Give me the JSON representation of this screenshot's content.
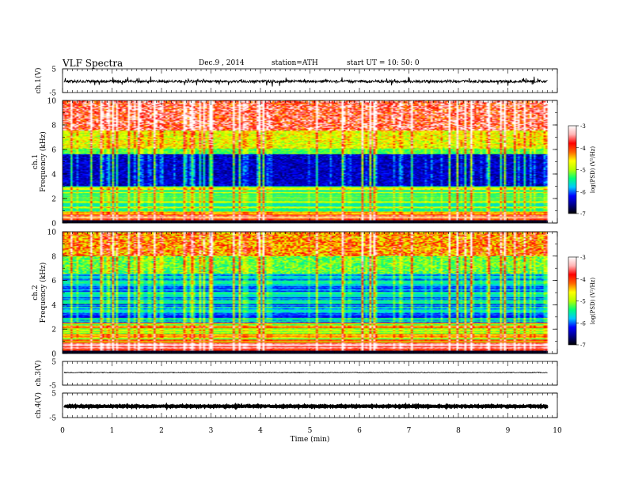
{
  "header": {
    "title": "VLF  Spectra",
    "date": "Dec.9  , 2014",
    "station": "station=ATH",
    "start": "start  UT  =    10: 50: 0"
  },
  "chart_data": [
    {
      "type": "line",
      "panel": "ch1-waveform",
      "ylabel": "ch.1(V)",
      "ylim": [
        -5,
        5
      ],
      "yticks": [
        5,
        -5
      ],
      "xlim": [
        0,
        10
      ],
      "x_data_end": 9.8,
      "grid": false,
      "series": [
        {
          "mean": -0.3,
          "noise_amplitude": 1.1,
          "spike_amplitude": 2.0
        }
      ]
    },
    {
      "type": "heatmap",
      "panel": "ch1-spectrogram",
      "ylabel_lines": [
        "ch.1",
        "Frequency  (kHz)"
      ],
      "ylim": [
        0,
        10
      ],
      "yticks": [
        0,
        2,
        4,
        6,
        8,
        10
      ],
      "xlim": [
        0,
        10
      ],
      "x_data_end": 9.8,
      "colorbar": {
        "label": "log(PSD) (V²/Hz)",
        "range": [
          -7,
          -3
        ],
        "ticks": [
          -3,
          -4,
          -5,
          -6,
          -7
        ]
      }
    },
    {
      "type": "heatmap",
      "panel": "ch2-spectrogram",
      "ylabel_lines": [
        "ch.2",
        "Frequency  (kHz)"
      ],
      "ylim": [
        0,
        10
      ],
      "yticks": [
        0,
        2,
        4,
        6,
        8,
        10
      ],
      "xlim": [
        0,
        10
      ],
      "x_data_end": 9.8,
      "colorbar": {
        "label": "log(PSD) (V²/Hz)",
        "range": [
          -7,
          -3
        ],
        "ticks": [
          -3,
          -4,
          -5,
          -6,
          -7
        ]
      }
    },
    {
      "type": "line",
      "panel": "ch3-waveform",
      "ylabel": "ch.3(V)",
      "ylim": [
        -5,
        5
      ],
      "yticks": [
        5,
        -5
      ],
      "xlim": [
        0,
        10
      ],
      "x_data_end": 9.8,
      "grid": false,
      "series": [
        {
          "mean": 0.3,
          "noise_amplitude": 0.15
        }
      ]
    },
    {
      "type": "line",
      "panel": "ch4-waveform",
      "ylabel": "ch.4(V)",
      "ylim": [
        -5,
        5
      ],
      "yticks": [
        5,
        -5
      ],
      "xlim": [
        0,
        10
      ],
      "x_data_end": 9.8,
      "grid": false,
      "series": [
        {
          "mean": -0.4,
          "noise_amplitude": 0.2
        }
      ]
    }
  ],
  "x_axis": {
    "label": "Time  (min)",
    "ticks": [
      0,
      1,
      2,
      3,
      4,
      5,
      6,
      7,
      8,
      9,
      10
    ]
  },
  "colors": {
    "colormap": [
      "#000000",
      "#00008a",
      "#0000ff",
      "#00c8ff",
      "#00ff7a",
      "#b4ff00",
      "#ffff00",
      "#ff6400",
      "#ff0000",
      "#ffb4b4",
      "#ffffff"
    ]
  }
}
